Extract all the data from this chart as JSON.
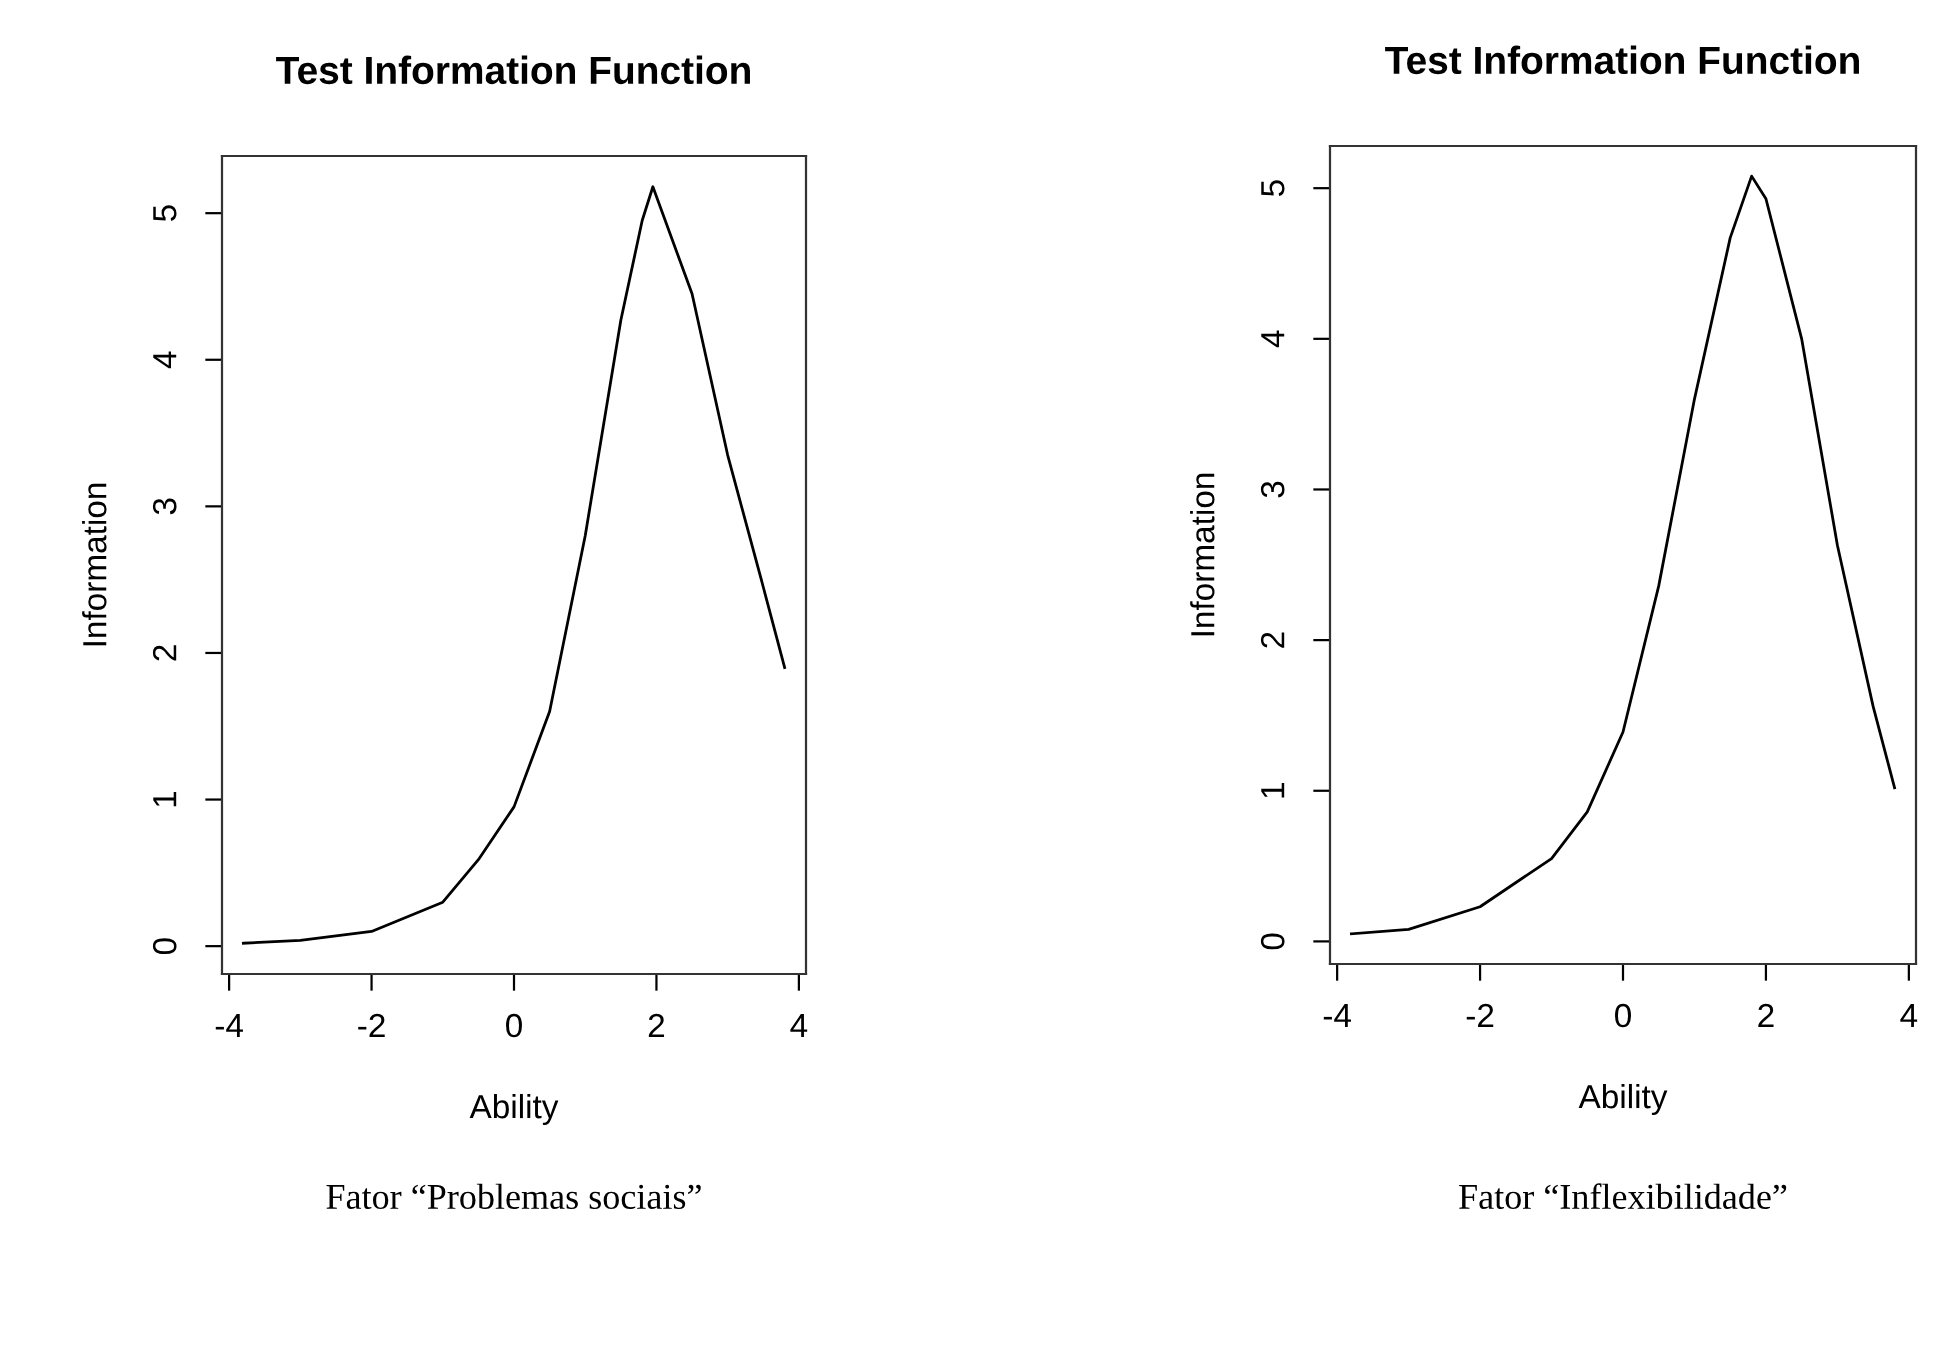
{
  "chart_data": [
    {
      "type": "line",
      "title": "Test Information Function",
      "xlabel": "Ability",
      "ylabel": "Information",
      "x": [
        -3.8,
        -3,
        -2,
        -1,
        -0.5,
        0,
        0.5,
        1,
        1.5,
        1.8,
        1.95,
        2.5,
        3,
        3.5,
        3.8
      ],
      "series": [
        {
          "color": "#000000",
          "values": [
            0.02,
            0.04,
            0.1,
            0.3,
            0.59,
            0.95,
            1.6,
            2.8,
            4.27,
            4.95,
            5.18,
            4.45,
            3.35,
            2.45,
            1.9
          ]
        }
      ],
      "xlim": [
        -4.1,
        4.1
      ],
      "ylim": [
        -0.19,
        5.39
      ],
      "xticks": [
        -4,
        -2,
        0,
        2,
        4
      ],
      "yticks": [
        0,
        1,
        2,
        3,
        4,
        5
      ],
      "grid": false,
      "legend": false,
      "annotations": [
        "Fator “Problemas sociais”"
      ]
    },
    {
      "type": "line",
      "title": "Test Information Function",
      "xlabel": "Ability",
      "ylabel": "Information",
      "x": [
        -3.8,
        -3,
        -2,
        -1,
        -0.5,
        0,
        0.5,
        1,
        1.5,
        1.8,
        2,
        2.5,
        3,
        3.5,
        3.8
      ],
      "series": [
        {
          "color": "#000000",
          "values": [
            0.05,
            0.08,
            0.23,
            0.55,
            0.86,
            1.39,
            2.36,
            3.6,
            4.67,
            5.08,
            4.93,
            4.0,
            2.63,
            1.56,
            1.02
          ]
        }
      ],
      "xlim": [
        -4.1,
        4.1
      ],
      "ylim": [
        -0.15,
        5.28
      ],
      "xticks": [
        -4,
        -2,
        0,
        2,
        4
      ],
      "yticks": [
        0,
        1,
        2,
        3,
        4,
        5
      ],
      "grid": false,
      "legend": false,
      "annotations": [
        "Fator “Inflexibilidade”"
      ]
    }
  ]
}
